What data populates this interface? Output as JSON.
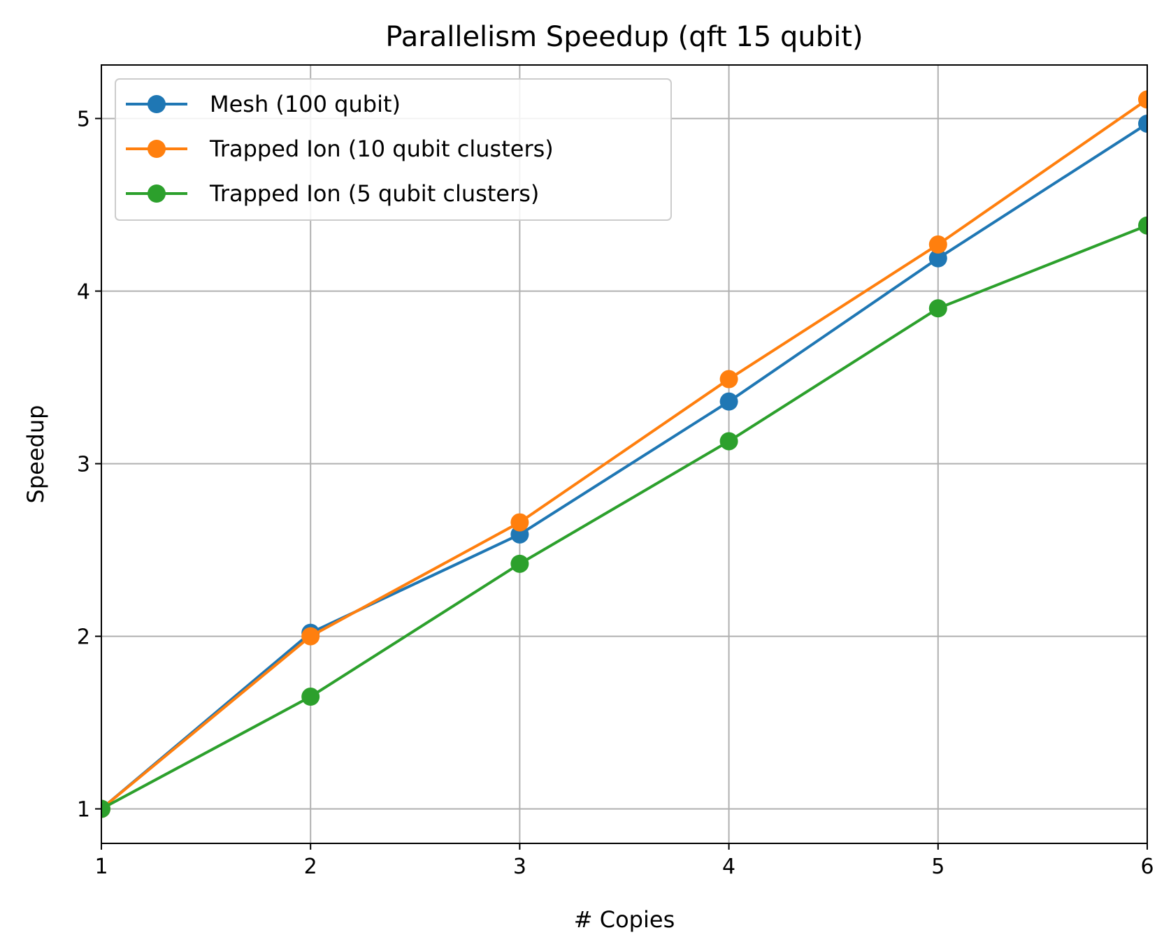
{
  "chart_data": {
    "type": "line",
    "title": "Parallelism Speedup (qft 15 qubit)",
    "xlabel": "# Copies",
    "ylabel": "Speedup",
    "xlim": [
      1,
      6
    ],
    "ylim": [
      0.8,
      5.31
    ],
    "xticks": [
      1,
      2,
      3,
      4,
      5,
      6
    ],
    "yticks": [
      1,
      2,
      3,
      4,
      5
    ],
    "grid": true,
    "legend_position": "upper-left",
    "x": [
      1,
      2,
      3,
      4,
      5,
      6
    ],
    "series": [
      {
        "name": "Mesh (100 qubit)",
        "color": "#1f77b4",
        "values": [
          1.0,
          2.02,
          2.59,
          3.36,
          4.19,
          4.97
        ]
      },
      {
        "name": "Trapped Ion (10 qubit clusters)",
        "color": "#ff7f0e",
        "values": [
          1.0,
          2.0,
          2.66,
          3.49,
          4.27,
          5.11
        ]
      },
      {
        "name": "Trapped Ion (5 qubit clusters)",
        "color": "#2ca02c",
        "values": [
          1.0,
          1.65,
          2.42,
          3.13,
          3.9,
          4.38
        ]
      }
    ]
  }
}
